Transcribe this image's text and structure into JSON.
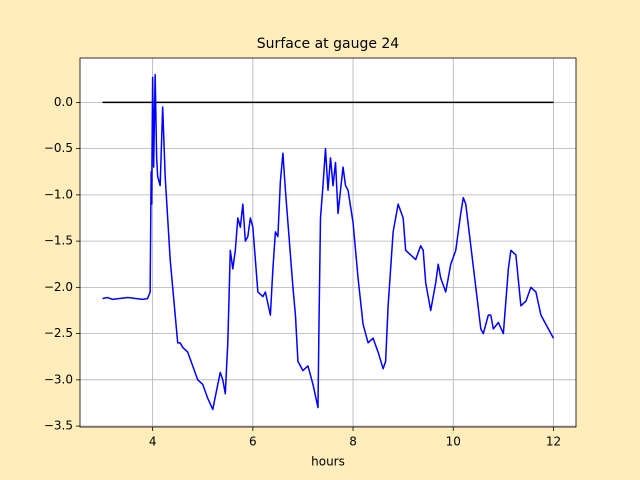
{
  "chart_data": {
    "type": "line",
    "title": "Surface at gauge 24",
    "xlabel": "hours",
    "xlim": [
      2.55,
      12.45
    ],
    "ylim": [
      -3.51,
      0.48
    ],
    "xticks": [
      4,
      6,
      8,
      10,
      12
    ],
    "yticks": [
      {
        "value": 0,
        "label": "0.0"
      },
      {
        "value": -0.5,
        "label": "−0.5"
      },
      {
        "value": -1,
        "label": "−1.0"
      },
      {
        "value": -1.5,
        "label": "−1.5"
      },
      {
        "value": -2,
        "label": "−2.0"
      },
      {
        "value": -2.5,
        "label": "−2.5"
      },
      {
        "value": -3,
        "label": "−3.0"
      },
      {
        "value": -3.5,
        "label": "−3.5"
      }
    ],
    "grid": true,
    "series": [
      {
        "color": "#000000",
        "x": [
          3,
          12
        ],
        "values": [
          0,
          0
        ]
      },
      {
        "color": "#0000ff",
        "x": [
          3.0,
          3.1,
          3.2,
          3.5,
          3.8,
          3.9,
          3.95,
          3.97,
          3.98,
          4.0,
          4.02,
          4.05,
          4.08,
          4.1,
          4.15,
          4.2,
          4.25,
          4.3,
          4.35,
          4.4,
          4.45,
          4.5,
          4.55,
          4.6,
          4.7,
          4.8,
          4.9,
          5.0,
          5.1,
          5.2,
          5.3,
          5.35,
          5.4,
          5.45,
          5.5,
          5.55,
          5.6,
          5.65,
          5.7,
          5.75,
          5.8,
          5.85,
          5.9,
          5.95,
          6.0,
          6.05,
          6.1,
          6.2,
          6.25,
          6.35,
          6.4,
          6.45,
          6.5,
          6.55,
          6.6,
          6.65,
          6.7,
          6.8,
          6.85,
          6.9,
          7.0,
          7.1,
          7.2,
          7.3,
          7.32,
          7.35,
          7.4,
          7.45,
          7.5,
          7.55,
          7.6,
          7.65,
          7.7,
          7.75,
          7.8,
          7.85,
          7.9,
          8.0,
          8.1,
          8.2,
          8.3,
          8.4,
          8.5,
          8.6,
          8.65,
          8.7,
          8.8,
          8.9,
          9.0,
          9.05,
          9.15,
          9.25,
          9.35,
          9.4,
          9.45,
          9.55,
          9.65,
          9.7,
          9.75,
          9.85,
          9.95,
          10.05,
          10.15,
          10.2,
          10.25,
          10.35,
          10.45,
          10.55,
          10.6,
          10.7,
          10.75,
          10.8,
          10.9,
          11.0,
          11.1,
          11.15,
          11.25,
          11.35,
          11.45,
          11.55,
          11.65,
          11.75,
          11.9,
          12.0
        ],
        "values": [
          -2.12,
          -2.11,
          -2.13,
          -2.11,
          -2.13,
          -2.12,
          -2.05,
          -0.75,
          -1.1,
          0.27,
          -0.7,
          0.3,
          -0.6,
          -0.8,
          -0.9,
          -0.05,
          -0.8,
          -1.25,
          -1.7,
          -2.0,
          -2.3,
          -2.6,
          -2.6,
          -2.65,
          -2.7,
          -2.85,
          -3.0,
          -3.05,
          -3.2,
          -3.32,
          -3.05,
          -2.92,
          -3.0,
          -3.15,
          -2.6,
          -1.6,
          -1.8,
          -1.6,
          -1.25,
          -1.35,
          -1.1,
          -1.5,
          -1.45,
          -1.25,
          -1.35,
          -1.7,
          -2.05,
          -2.1,
          -2.05,
          -2.3,
          -1.8,
          -1.4,
          -1.45,
          -0.85,
          -0.55,
          -0.95,
          -1.3,
          -2.0,
          -2.3,
          -2.8,
          -2.9,
          -2.85,
          -3.05,
          -3.3,
          -2.4,
          -1.25,
          -0.9,
          -0.5,
          -0.95,
          -0.6,
          -0.9,
          -0.65,
          -1.2,
          -0.95,
          -0.7,
          -0.9,
          -0.95,
          -1.3,
          -1.9,
          -2.4,
          -2.6,
          -2.55,
          -2.7,
          -2.88,
          -2.8,
          -2.2,
          -1.4,
          -1.1,
          -1.25,
          -1.6,
          -1.65,
          -1.7,
          -1.55,
          -1.6,
          -1.95,
          -2.25,
          -1.95,
          -1.75,
          -1.9,
          -2.05,
          -1.75,
          -1.6,
          -1.2,
          -1.03,
          -1.1,
          -1.55,
          -2.0,
          -2.45,
          -2.5,
          -2.3,
          -2.3,
          -2.45,
          -2.38,
          -2.5,
          -1.8,
          -1.6,
          -1.65,
          -2.2,
          -2.15,
          -2.0,
          -2.05,
          -2.3,
          -2.45,
          -2.55
        ]
      }
    ]
  }
}
